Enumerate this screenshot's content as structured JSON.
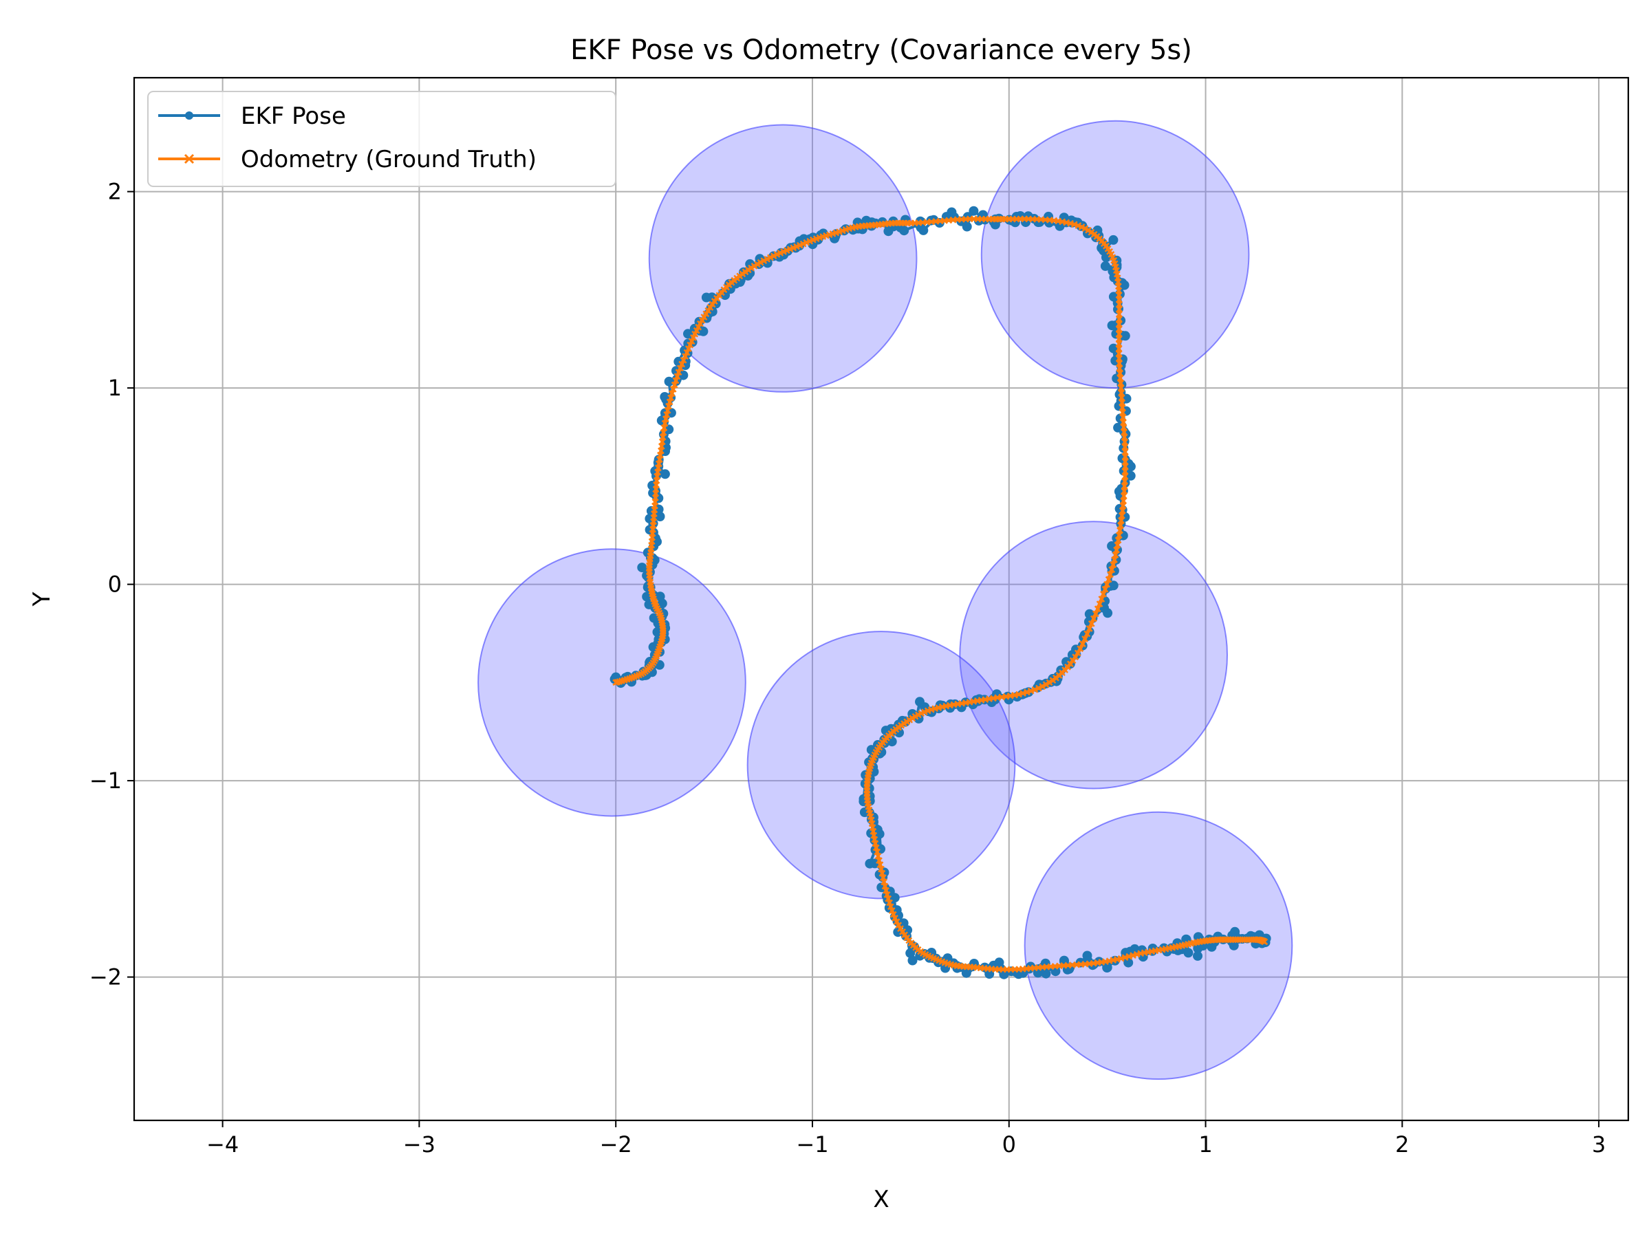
{
  "chart_data": {
    "type": "line",
    "title": "EKF Pose vs Odometry (Covariance every 5s)",
    "xlabel": "X",
    "ylabel": "Y",
    "xlim": [
      -4.45,
      3.15
    ],
    "ylim": [
      -2.73,
      2.58
    ],
    "x_ticks": [
      -4,
      -3,
      -2,
      -1,
      0,
      1,
      2,
      3
    ],
    "y_ticks": [
      -2,
      -1,
      0,
      1,
      2
    ],
    "x_tick_labels": [
      "−4",
      "−3",
      "−2",
      "−1",
      "0",
      "1",
      "2",
      "3"
    ],
    "y_tick_labels": [
      "−2",
      "−1",
      "0",
      "1",
      "2"
    ],
    "grid": true,
    "legend_position": "upper-left",
    "colors": {
      "ekf": "#1f77b4",
      "odometry": "#ff7f0e",
      "covariance_fill": "#7070ff",
      "covariance_edge": "#4040ff",
      "grid": "#b0b0b0"
    },
    "series": [
      {
        "name": "EKF Pose",
        "marker": "dot",
        "noisy": true,
        "x": [
          -2.0,
          -1.93,
          -1.86,
          -1.81,
          -1.78,
          -1.76,
          -1.77,
          -1.8,
          -1.82,
          -1.83,
          -1.82,
          -1.81,
          -1.8,
          -1.79,
          -1.77,
          -1.75,
          -1.72,
          -1.68,
          -1.63,
          -1.58,
          -1.52,
          -1.45,
          -1.37,
          -1.28,
          -1.18,
          -1.08,
          -0.98,
          -0.88,
          -0.78,
          -0.68,
          -0.58,
          -0.48,
          -0.35,
          -0.22,
          -0.1,
          0.0,
          0.12,
          0.25,
          0.37,
          0.46,
          0.52,
          0.55,
          0.56,
          0.56,
          0.56,
          0.57,
          0.58,
          0.59,
          0.59,
          0.58,
          0.56,
          0.53,
          0.48,
          0.42,
          0.35,
          0.27,
          0.17,
          0.05,
          -0.08,
          -0.2,
          -0.32,
          -0.43,
          -0.52,
          -0.6,
          -0.66,
          -0.7,
          -0.72,
          -0.72,
          -0.7,
          -0.68,
          -0.65,
          -0.62,
          -0.58,
          -0.52,
          -0.45,
          -0.37,
          -0.28,
          -0.18,
          -0.07,
          0.05,
          0.17,
          0.3,
          0.43,
          0.55,
          0.67,
          0.78,
          0.88,
          0.97,
          1.06,
          1.14,
          1.21,
          1.27,
          1.3
        ],
        "y": [
          -0.5,
          -0.48,
          -0.45,
          -0.4,
          -0.33,
          -0.25,
          -0.17,
          -0.1,
          -0.02,
          0.08,
          0.18,
          0.3,
          0.42,
          0.55,
          0.68,
          0.82,
          0.95,
          1.08,
          1.2,
          1.31,
          1.41,
          1.5,
          1.57,
          1.63,
          1.68,
          1.72,
          1.76,
          1.79,
          1.82,
          1.83,
          1.84,
          1.84,
          1.85,
          1.86,
          1.86,
          1.86,
          1.86,
          1.85,
          1.82,
          1.76,
          1.68,
          1.58,
          1.45,
          1.3,
          1.15,
          1.0,
          0.85,
          0.7,
          0.55,
          0.4,
          0.25,
          0.1,
          -0.05,
          -0.2,
          -0.35,
          -0.45,
          -0.52,
          -0.56,
          -0.58,
          -0.6,
          -0.62,
          -0.65,
          -0.7,
          -0.76,
          -0.83,
          -0.91,
          -1.0,
          -1.1,
          -1.2,
          -1.32,
          -1.45,
          -1.58,
          -1.7,
          -1.8,
          -1.87,
          -1.91,
          -1.94,
          -1.95,
          -1.96,
          -1.96,
          -1.95,
          -1.94,
          -1.93,
          -1.91,
          -1.88,
          -1.86,
          -1.84,
          -1.82,
          -1.81,
          -1.81,
          -1.81,
          -1.81,
          -1.82
        ]
      },
      {
        "name": "Odometry (Ground Truth)",
        "marker": "x",
        "x": [
          -2.0,
          -1.93,
          -1.86,
          -1.81,
          -1.78,
          -1.76,
          -1.77,
          -1.8,
          -1.82,
          -1.83,
          -1.82,
          -1.81,
          -1.8,
          -1.79,
          -1.77,
          -1.75,
          -1.72,
          -1.68,
          -1.63,
          -1.58,
          -1.52,
          -1.45,
          -1.37,
          -1.28,
          -1.18,
          -1.08,
          -0.98,
          -0.88,
          -0.78,
          -0.68,
          -0.58,
          -0.48,
          -0.35,
          -0.22,
          -0.1,
          0.0,
          0.12,
          0.25,
          0.37,
          0.46,
          0.52,
          0.55,
          0.56,
          0.56,
          0.56,
          0.57,
          0.58,
          0.59,
          0.59,
          0.58,
          0.56,
          0.53,
          0.48,
          0.42,
          0.35,
          0.27,
          0.17,
          0.05,
          -0.08,
          -0.2,
          -0.32,
          -0.43,
          -0.52,
          -0.6,
          -0.66,
          -0.7,
          -0.72,
          -0.72,
          -0.7,
          -0.68,
          -0.65,
          -0.62,
          -0.58,
          -0.52,
          -0.45,
          -0.37,
          -0.28,
          -0.18,
          -0.07,
          0.05,
          0.17,
          0.3,
          0.43,
          0.55,
          0.67,
          0.78,
          0.88,
          0.97,
          1.06,
          1.14,
          1.21,
          1.27,
          1.3
        ],
        "y": [
          -0.5,
          -0.48,
          -0.45,
          -0.4,
          -0.33,
          -0.25,
          -0.17,
          -0.1,
          -0.02,
          0.08,
          0.18,
          0.3,
          0.42,
          0.55,
          0.68,
          0.82,
          0.95,
          1.08,
          1.2,
          1.31,
          1.41,
          1.5,
          1.57,
          1.63,
          1.68,
          1.72,
          1.76,
          1.79,
          1.82,
          1.83,
          1.84,
          1.84,
          1.85,
          1.86,
          1.86,
          1.86,
          1.86,
          1.85,
          1.82,
          1.76,
          1.68,
          1.58,
          1.45,
          1.3,
          1.15,
          1.0,
          0.85,
          0.7,
          0.55,
          0.4,
          0.25,
          0.1,
          -0.05,
          -0.2,
          -0.35,
          -0.45,
          -0.52,
          -0.56,
          -0.58,
          -0.6,
          -0.62,
          -0.65,
          -0.7,
          -0.76,
          -0.83,
          -0.91,
          -1.0,
          -1.1,
          -1.2,
          -1.32,
          -1.45,
          -1.58,
          -1.7,
          -1.8,
          -1.87,
          -1.91,
          -1.94,
          -1.95,
          -1.96,
          -1.96,
          -1.95,
          -1.94,
          -1.93,
          -1.91,
          -1.88,
          -1.86,
          -1.84,
          -1.82,
          -1.81,
          -1.81,
          -1.81,
          -1.81,
          -1.82
        ]
      }
    ],
    "covariance_ellipses": [
      {
        "cx": -2.02,
        "cy": -0.5,
        "r": 0.68
      },
      {
        "cx": -1.15,
        "cy": 1.66,
        "r": 0.68
      },
      {
        "cx": 0.54,
        "cy": 1.68,
        "r": 0.68
      },
      {
        "cx": 0.43,
        "cy": -0.36,
        "r": 0.68
      },
      {
        "cx": -0.65,
        "cy": -0.92,
        "r": 0.68
      },
      {
        "cx": 0.76,
        "cy": -1.84,
        "r": 0.68
      }
    ]
  }
}
